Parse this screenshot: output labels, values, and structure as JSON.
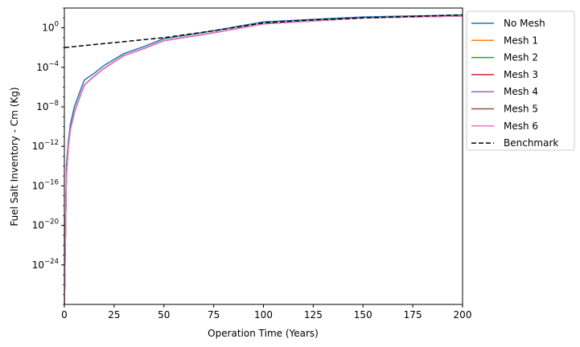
{
  "chart_data": {
    "type": "line",
    "xlabel": "Operation Time (Years)",
    "ylabel": "Fuel Salt Inventory - Cm (Kg)",
    "xlim": [
      0,
      200
    ],
    "ylim_log10": [
      -28,
      2
    ],
    "y_scale": "log",
    "grid": false,
    "legend_position": "outside-top-right",
    "x_ticks": [
      {
        "v": 0,
        "label": "0"
      },
      {
        "v": 25,
        "label": "25"
      },
      {
        "v": 50,
        "label": "50"
      },
      {
        "v": 75,
        "label": "75"
      },
      {
        "v": 100,
        "label": "100"
      },
      {
        "v": 125,
        "label": "125"
      },
      {
        "v": 150,
        "label": "150"
      },
      {
        "v": 175,
        "label": "175"
      },
      {
        "v": 200,
        "label": "200"
      }
    ],
    "y_ticks": [
      {
        "exp": 0,
        "base": "10",
        "sup": "0"
      },
      {
        "exp": -4,
        "base": "10",
        "sup": "−4"
      },
      {
        "exp": -8,
        "base": "10",
        "sup": "−8"
      },
      {
        "exp": -12,
        "base": "10",
        "sup": "−12"
      },
      {
        "exp": -16,
        "base": "10",
        "sup": "−16"
      },
      {
        "exp": -20,
        "base": "10",
        "sup": "−20"
      },
      {
        "exp": -24,
        "base": "10",
        "sup": "−24"
      }
    ],
    "series": [
      {
        "name": "No Mesh",
        "color": "#1f77b4",
        "dash": false,
        "x": [
          0,
          1,
          2,
          3,
          5,
          7,
          10,
          15,
          20,
          30,
          40,
          50,
          75,
          100,
          150,
          200
        ],
        "log10_y": [
          -28,
          -14,
          -11.5,
          -9.8,
          -8,
          -6.9,
          -5.3,
          -4.6,
          -3.8,
          -2.6,
          -1.9,
          -1.1,
          -0.3,
          0.6,
          1.1,
          1.3
        ]
      },
      {
        "name": "Mesh 1",
        "color": "#ff7f0e",
        "dash": false,
        "x": [
          0,
          1,
          2,
          3,
          5,
          7,
          10,
          15,
          20,
          30,
          40,
          50,
          75,
          100,
          150,
          200
        ],
        "log10_y": [
          -28,
          -15,
          -12,
          -10.3,
          -8.6,
          -7.4,
          -5.8,
          -4.9,
          -4.1,
          -2.8,
          -2.1,
          -1.3,
          -0.5,
          0.4,
          1.0,
          1.2
        ]
      },
      {
        "name": "Mesh 2",
        "color": "#2ca02c",
        "dash": false,
        "x": [
          0,
          1,
          2,
          3,
          5,
          7,
          10,
          15,
          20,
          30,
          40,
          50,
          75,
          100,
          150,
          200
        ],
        "log10_y": [
          -28,
          -15,
          -12,
          -10.3,
          -8.6,
          -7.4,
          -5.8,
          -4.9,
          -4.1,
          -2.8,
          -2.1,
          -1.3,
          -0.5,
          0.4,
          1.0,
          1.2
        ]
      },
      {
        "name": "Mesh 3",
        "color": "#d62728",
        "dash": false,
        "x": [
          0,
          1,
          2,
          3,
          5,
          7,
          10,
          15,
          20,
          30,
          40,
          50,
          75,
          100,
          150,
          200
        ],
        "log10_y": [
          -28,
          -15,
          -12,
          -10.3,
          -8.6,
          -7.4,
          -5.8,
          -4.9,
          -4.1,
          -2.8,
          -2.1,
          -1.3,
          -0.5,
          0.4,
          1.0,
          1.2
        ]
      },
      {
        "name": "Mesh 4",
        "color": "#9467bd",
        "dash": false,
        "x": [
          0,
          1,
          2,
          3,
          5,
          7,
          10,
          15,
          20,
          30,
          40,
          50,
          75,
          100,
          150,
          200
        ],
        "log10_y": [
          -28,
          -15,
          -12,
          -10.3,
          -8.6,
          -7.4,
          -5.8,
          -4.9,
          -4.1,
          -2.8,
          -2.1,
          -1.3,
          -0.5,
          0.4,
          1.0,
          1.2
        ]
      },
      {
        "name": "Mesh 5",
        "color": "#8c564b",
        "dash": false,
        "x": [
          0,
          1,
          2,
          3,
          5,
          7,
          10,
          15,
          20,
          30,
          40,
          50,
          75,
          100,
          150,
          200
        ],
        "log10_y": [
          -28,
          -15,
          -12,
          -10.3,
          -8.6,
          -7.4,
          -5.8,
          -4.9,
          -4.1,
          -2.8,
          -2.1,
          -1.3,
          -0.5,
          0.4,
          1.0,
          1.2
        ]
      },
      {
        "name": "Mesh 6",
        "color": "#e377c2",
        "dash": false,
        "x": [
          0,
          1,
          2,
          3,
          5,
          7,
          10,
          15,
          20,
          30,
          40,
          50,
          75,
          100,
          150,
          200
        ],
        "log10_y": [
          -28,
          -15,
          -12,
          -10.3,
          -8.6,
          -7.4,
          -5.8,
          -4.9,
          -4.1,
          -2.8,
          -2.1,
          -1.3,
          -0.5,
          0.4,
          1.0,
          1.2
        ]
      },
      {
        "name": "Benchmark",
        "color": "#000000",
        "dash": true,
        "x": [
          0,
          25,
          50,
          75,
          100,
          125,
          150,
          175,
          200
        ],
        "log10_y": [
          -2.0,
          -1.5,
          -1.0,
          -0.3,
          0.5,
          0.8,
          1.0,
          1.15,
          1.3
        ]
      }
    ]
  }
}
